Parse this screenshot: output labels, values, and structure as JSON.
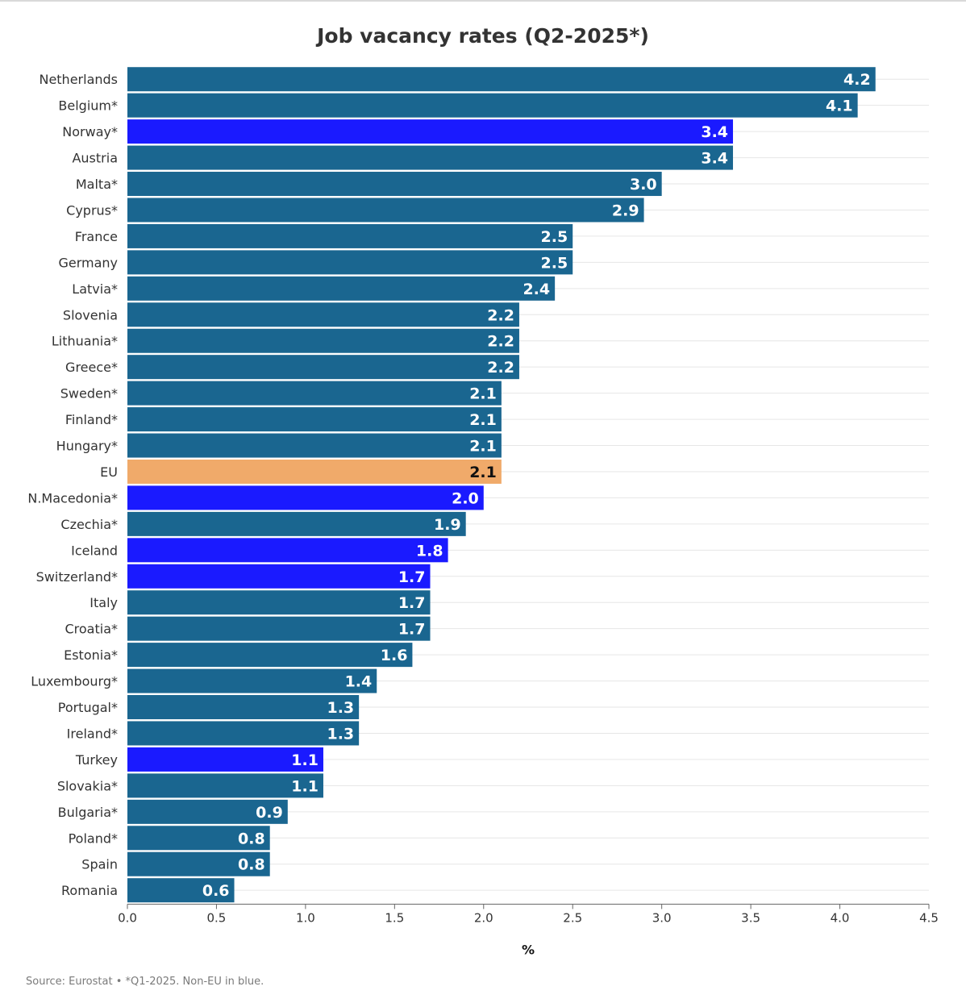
{
  "chart_data": {
    "type": "bar",
    "orientation": "horizontal",
    "title": "Job vacancy rates (Q2-2025*)",
    "xlabel": "%",
    "ylabel": "",
    "xlim": [
      0,
      4.5
    ],
    "xticks": [
      "0.0",
      "0.5",
      "1.0",
      "1.5",
      "2.0",
      "2.5",
      "3.0",
      "3.5",
      "4.0",
      "4.5"
    ],
    "grid": true,
    "categories": [
      "Netherlands",
      "Belgium*",
      "Norway*",
      "Austria",
      "Malta*",
      "Cyprus*",
      "France",
      "Germany",
      "Latvia*",
      "Slovenia",
      "Lithuania*",
      "Greece*",
      "Sweden*",
      "Finland*",
      "Hungary*",
      "EU",
      "N.Macedonia*",
      "Czechia*",
      "Iceland",
      "Switzerland*",
      "Italy",
      "Croatia*",
      "Estonia*",
      "Luxembourg*",
      "Portugal*",
      "Ireland*",
      "Turkey",
      "Slovakia*",
      "Bulgaria*",
      "Poland*",
      "Spain",
      "Romania"
    ],
    "values": [
      4.2,
      4.1,
      3.4,
      3.4,
      3.0,
      2.9,
      2.5,
      2.5,
      2.4,
      2.2,
      2.2,
      2.2,
      2.1,
      2.1,
      2.1,
      2.1,
      2.0,
      1.9,
      1.8,
      1.7,
      1.7,
      1.7,
      1.6,
      1.4,
      1.3,
      1.3,
      1.1,
      1.1,
      0.9,
      0.8,
      0.8,
      0.6
    ],
    "groups": [
      "eu",
      "eu",
      "non-eu",
      "eu",
      "eu",
      "eu",
      "eu",
      "eu",
      "eu",
      "eu",
      "eu",
      "eu",
      "eu",
      "eu",
      "eu",
      "aggregate",
      "non-eu",
      "eu",
      "non-eu",
      "non-eu",
      "eu",
      "eu",
      "eu",
      "eu",
      "eu",
      "eu",
      "non-eu",
      "eu",
      "eu",
      "eu",
      "eu",
      "eu"
    ],
    "colors": {
      "eu": "#1a6690",
      "non-eu": "#1a1aff",
      "aggregate": "#f0aa6a",
      "label_light": "#ffffff",
      "label_dark": "#111111",
      "grid": "#e6e6e6",
      "axis": "#666666",
      "text": "#333333"
    },
    "source": "Source: Eurostat • *Q1-2025. Non-EU in blue."
  }
}
